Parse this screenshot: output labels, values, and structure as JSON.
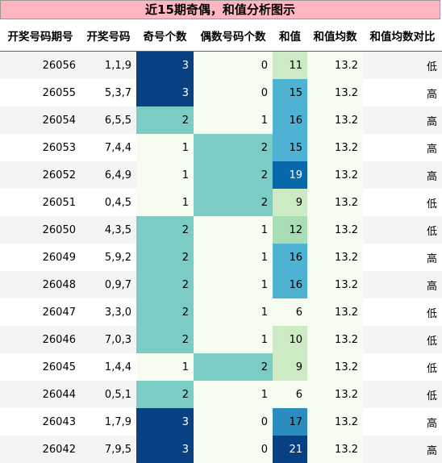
{
  "title": "近15期奇偶，和值分析图示",
  "columns": [
    "开奖号码期号",
    "开奖号码",
    "奇号个数",
    "偶数号码个数",
    "和值",
    "和值均数",
    "和值均数对比"
  ],
  "colors": {
    "title_bg": "#ffb6c1",
    "level_0": "#f7fcf0",
    "level_1": "#f7fcf0",
    "level_2": "#7bccc4",
    "level_3": "#084081",
    "sum_scale": [
      "#f7fcf0",
      "#ccebc5",
      "#a8ddb5",
      "#4eb3d3",
      "#2b8cbe",
      "#0868ac",
      "#084081"
    ],
    "avg_bg": "#f7fcf0",
    "text_dark": "#000000",
    "text_light": "#ffffff"
  },
  "rows": [
    {
      "issue": "26056",
      "numbers": "1,1,9",
      "odd": "3",
      "even": "0",
      "sum": "11",
      "avg": "13.2",
      "compare": "低"
    },
    {
      "issue": "26055",
      "numbers": "5,3,7",
      "odd": "3",
      "even": "0",
      "sum": "15",
      "avg": "13.2",
      "compare": "高"
    },
    {
      "issue": "26054",
      "numbers": "6,5,5",
      "odd": "2",
      "even": "1",
      "sum": "16",
      "avg": "13.2",
      "compare": "高"
    },
    {
      "issue": "26053",
      "numbers": "7,4,4",
      "odd": "1",
      "even": "2",
      "sum": "15",
      "avg": "13.2",
      "compare": "高"
    },
    {
      "issue": "26052",
      "numbers": "6,4,9",
      "odd": "1",
      "even": "2",
      "sum": "19",
      "avg": "13.2",
      "compare": "高"
    },
    {
      "issue": "26051",
      "numbers": "0,4,5",
      "odd": "1",
      "even": "2",
      "sum": "9",
      "avg": "13.2",
      "compare": "低"
    },
    {
      "issue": "26050",
      "numbers": "4,3,5",
      "odd": "2",
      "even": "1",
      "sum": "12",
      "avg": "13.2",
      "compare": "低"
    },
    {
      "issue": "26049",
      "numbers": "5,9,2",
      "odd": "2",
      "even": "1",
      "sum": "16",
      "avg": "13.2",
      "compare": "高"
    },
    {
      "issue": "26048",
      "numbers": "0,9,7",
      "odd": "2",
      "even": "1",
      "sum": "16",
      "avg": "13.2",
      "compare": "高"
    },
    {
      "issue": "26047",
      "numbers": "3,3,0",
      "odd": "2",
      "even": "1",
      "sum": "6",
      "avg": "13.2",
      "compare": "低"
    },
    {
      "issue": "26046",
      "numbers": "7,0,3",
      "odd": "2",
      "even": "1",
      "sum": "10",
      "avg": "13.2",
      "compare": "低"
    },
    {
      "issue": "26045",
      "numbers": "1,4,4",
      "odd": "1",
      "even": "2",
      "sum": "9",
      "avg": "13.2",
      "compare": "低"
    },
    {
      "issue": "26044",
      "numbers": "0,5,1",
      "odd": "2",
      "even": "1",
      "sum": "6",
      "avg": "13.2",
      "compare": "低"
    },
    {
      "issue": "26043",
      "numbers": "1,7,9",
      "odd": "3",
      "even": "0",
      "sum": "17",
      "avg": "13.2",
      "compare": "高"
    },
    {
      "issue": "26042",
      "numbers": "7,9,5",
      "odd": "3",
      "even": "0",
      "sum": "21",
      "avg": "13.2",
      "compare": "高"
    }
  ]
}
